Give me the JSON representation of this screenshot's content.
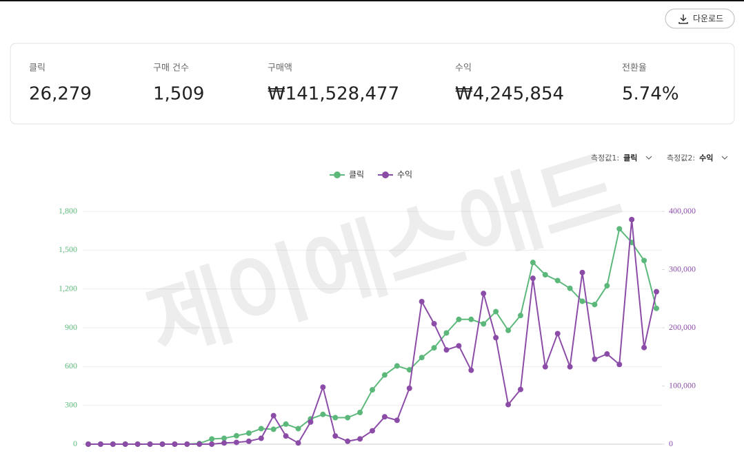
{
  "header": {
    "download_button": "다운로드"
  },
  "stats": [
    {
      "label": "클릭",
      "value": "26,279"
    },
    {
      "label": "구매 건수",
      "value": "1,509"
    },
    {
      "label": "구매액",
      "value": "₩141,528,477"
    },
    {
      "label": "수익",
      "value": "₩4,245,854"
    },
    {
      "label": "전환율",
      "value": "5.74%"
    }
  ],
  "selectors": [
    {
      "label": "측정값1:",
      "value": "클릭"
    },
    {
      "label": "측정값2:",
      "value": "수익"
    }
  ],
  "watermark": "제이에스애드",
  "chart_data": {
    "type": "line",
    "ylim": [
      0,
      1800
    ],
    "yticks": [
      0,
      300,
      600,
      900,
      {
        "value": 1200,
        "label": "1,200"
      },
      {
        "value": 1500,
        "label": "1,500"
      },
      {
        "value": 1800,
        "label": "1,800"
      }
    ],
    "y2lim": [
      0,
      400000
    ],
    "y2ticks": [
      0,
      {
        "value": 100000,
        "label": "100,000"
      },
      {
        "value": 200000,
        "label": "200,000"
      },
      {
        "value": 300000,
        "label": "300,000"
      },
      {
        "value": 400000,
        "label": "400,000"
      }
    ],
    "grid": true,
    "legend": "top",
    "series": [
      {
        "name": "클릭",
        "color": "#5cb87a",
        "values": [
          0,
          0,
          0,
          0,
          0,
          0,
          0,
          0,
          0,
          5,
          40,
          45,
          65,
          85,
          120,
          115,
          155,
          120,
          195,
          230,
          205,
          205,
          245,
          420,
          535,
          605,
          575,
          670,
          745,
          860,
          965,
          965,
          930,
          1025,
          880,
          995,
          1405,
          1310,
          1265,
          1205,
          1105,
          1080,
          1225,
          1665,
          1560,
          1420,
          1050
        ]
      },
      {
        "name": "수익",
        "color": "#8b4ca8",
        "axis": "y2",
        "values": [
          0,
          0,
          0,
          0,
          0,
          0,
          0,
          0,
          0,
          0,
          0,
          2000,
          3000,
          5000,
          10000,
          49000,
          14000,
          2000,
          38000,
          98000,
          14000,
          5000,
          9000,
          23000,
          47000,
          41000,
          96000,
          245000,
          207000,
          162000,
          169000,
          127000,
          259000,
          183000,
          68000,
          94000,
          285000,
          133000,
          190000,
          133000,
          295000,
          146000,
          155000,
          137000,
          386000,
          166000,
          262000
        ]
      }
    ]
  }
}
